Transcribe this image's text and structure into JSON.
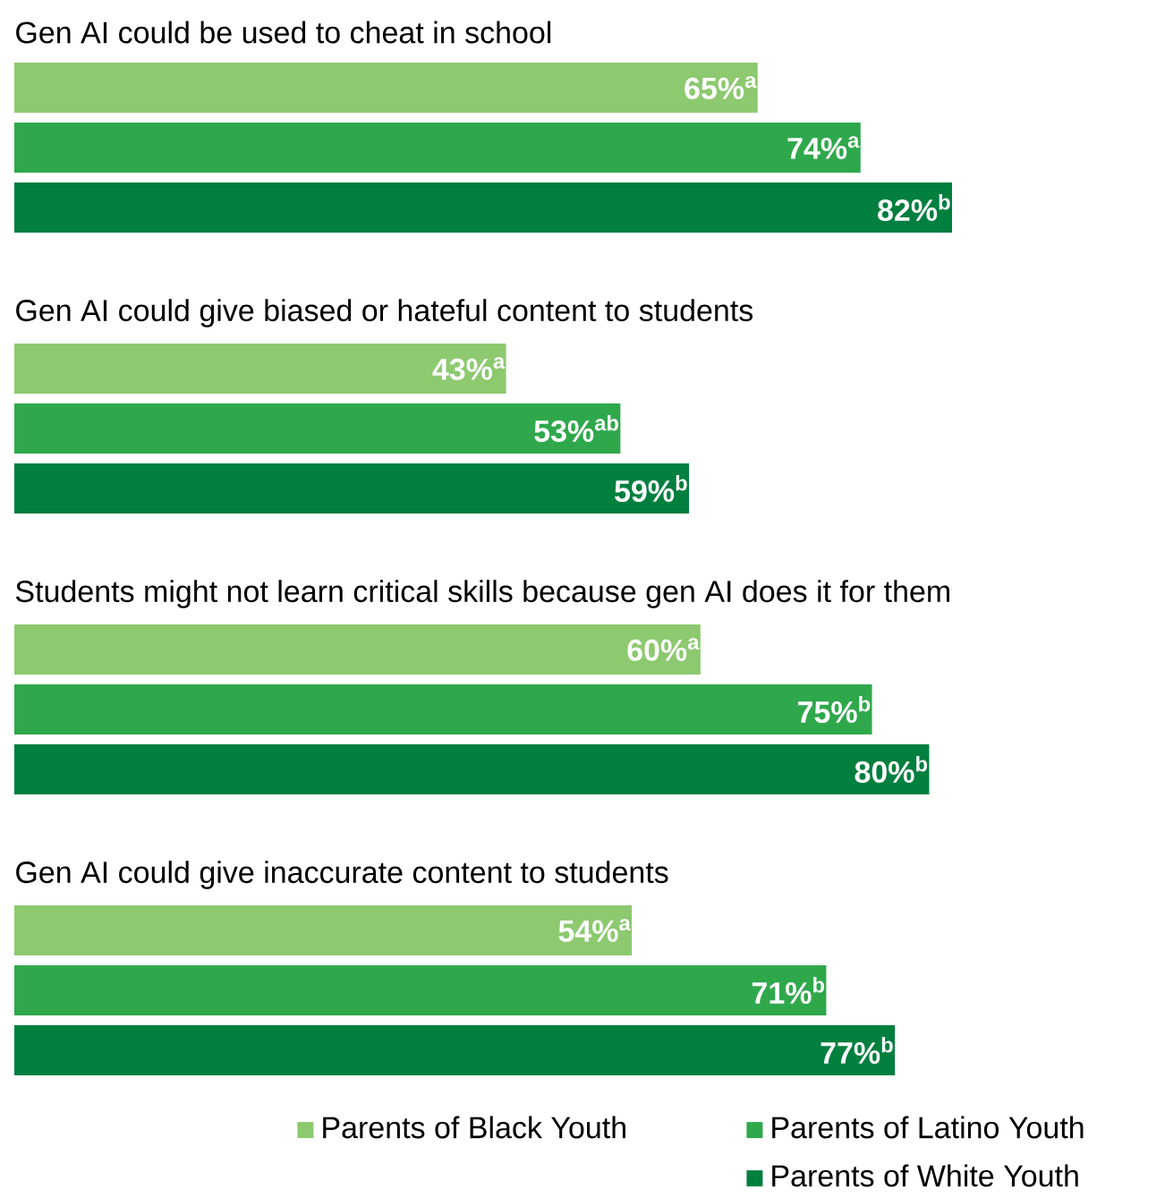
{
  "chart_data": {
    "type": "bar",
    "orientation": "horizontal",
    "legend": "bottom right",
    "categories": [
      "Gen AI could be used to cheat in school",
      "Gen AI could give biased or hateful content to students",
      "Students might not learn critical skills because gen AI does it for them",
      "Gen AI could give inaccurate content to students"
    ],
    "series": [
      {
        "name": "Parents of Black Youth",
        "color": "#8cc96f",
        "values": [
          65,
          43,
          60,
          54
        ],
        "value_labels": [
          "65%$^{a}$",
          "43%$^{a}$",
          "60%$^{a}$",
          "54%$^{a}$"
        ]
      },
      {
        "name": "Parents of Latino Youth",
        "color": "#2fa84c",
        "values": [
          74,
          53,
          75,
          71
        ],
        "value_labels": [
          "74%$^{a}$",
          "53%$^{ab}$",
          "75%$^{b}$",
          "71%$^{b}$"
        ]
      },
      {
        "name": "Parents of White Youth",
        "color": "#007f3f",
        "values": [
          82,
          59,
          80,
          77
        ],
        "value_labels": [
          "82%$^{b}$",
          "59%$^{b}$",
          "80%$^{b}$",
          "77%$^{b}$"
        ]
      }
    ]
  }
}
